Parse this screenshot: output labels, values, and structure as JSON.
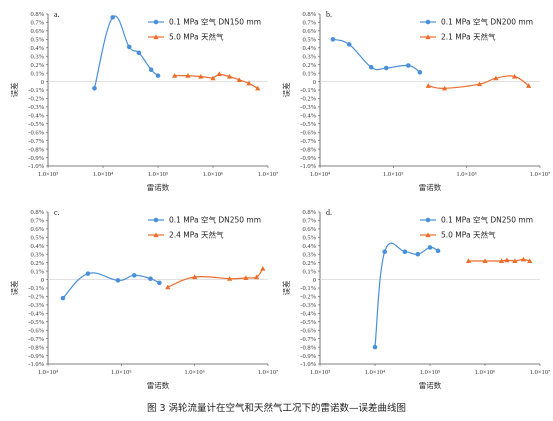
{
  "caption": "图 3   涡轮流量计在空气和天然气工况下的雷诺数—误差曲线图",
  "colors": {
    "air": "#4a90d9",
    "gas": "#ed6c2a",
    "axis": "#555555",
    "grid": "#cfcfcf"
  },
  "chart_data": [
    {
      "type": "line",
      "panel": "a.",
      "xlabel": "雷诺数",
      "ylabel": "误差",
      "x_scale": "log",
      "xlim": [
        1000,
        10000000
      ],
      "ylim": [
        -1.0,
        0.8
      ],
      "x_ticks": [
        "1.0×10³",
        "1.0×10⁴",
        "1.0×10⁵",
        "1.0×10⁶",
        "1.0×10⁷"
      ],
      "y_ticks": [
        "0.8%",
        "0.7%",
        "0.6%",
        "0.5%",
        "0.4%",
        "0.3%",
        "0.2%",
        "0.1%",
        "0",
        "-0.1%",
        "-0.2%",
        "-0.3%",
        "-0.4%",
        "-0.5%",
        "-0.6%",
        "-0.7%",
        "-0.8%",
        "-0.9%",
        "-1.0%"
      ],
      "series": [
        {
          "name": "0.1 MPa 空气   DN150 mm",
          "color": "#4a90d9",
          "marker": "circle",
          "smooth": true,
          "x": [
            7000,
            15000,
            30000,
            45000,
            75000,
            100000
          ],
          "y": [
            -0.08,
            0.76,
            0.41,
            0.34,
            0.14,
            0.07
          ]
        },
        {
          "name": "5.0 MPa 天然气",
          "color": "#ed6c2a",
          "marker": "triangle",
          "smooth": false,
          "x": [
            200000,
            350000,
            600000,
            1000000,
            1300000,
            2000000,
            3000000,
            4500000,
            6500000
          ],
          "y": [
            0.07,
            0.07,
            0.06,
            0.04,
            0.09,
            0.06,
            0.02,
            -0.02,
            -0.08
          ]
        }
      ]
    },
    {
      "type": "line",
      "panel": "b.",
      "xlabel": "雷诺数",
      "ylabel": "误差",
      "x_scale": "log",
      "xlim": [
        10000,
        10000000
      ],
      "ylim": [
        -1.0,
        0.8
      ],
      "x_ticks": [
        "1.0×10⁴",
        "1.0×10⁵",
        "1.0×10⁶",
        "1.0×10⁷"
      ],
      "y_ticks": [
        "0.8%",
        "0.7%",
        "0.6%",
        "0.5%",
        "0.4%",
        "0.3%",
        "0.2%",
        "0.1%",
        "0",
        "-0.1%",
        "-0.2%",
        "-0.3%",
        "-0.4%",
        "-0.5%",
        "-0.6%",
        "-0.7%",
        "-0.8%",
        "-0.9%",
        "-1.0%"
      ],
      "series": [
        {
          "name": "0.1 MPa 空气   DN200 mm",
          "color": "#4a90d9",
          "marker": "circle",
          "smooth": true,
          "x": [
            15000,
            25000,
            50000,
            80000,
            160000,
            230000
          ],
          "y": [
            0.5,
            0.44,
            0.17,
            0.16,
            0.19,
            0.11
          ]
        },
        {
          "name": "2.1 MPa 天然气",
          "color": "#ed6c2a",
          "marker": "triangle",
          "smooth": true,
          "x": [
            300000,
            500000,
            1500000,
            2500000,
            4500000,
            7000000
          ],
          "y": [
            -0.05,
            -0.08,
            -0.03,
            0.04,
            0.06,
            -0.05
          ]
        }
      ]
    },
    {
      "type": "line",
      "panel": "c.",
      "xlabel": "雷诺数",
      "ylabel": "误差",
      "x_scale": "log",
      "xlim": [
        10000,
        10000000
      ],
      "ylim": [
        -1.0,
        0.8
      ],
      "x_ticks": [
        "1.0×10⁴",
        "1.0×10⁵",
        "1.0×10⁶",
        "1.0×10⁷"
      ],
      "y_ticks": [
        "0.8%",
        "0.7%",
        "0.6%",
        "0.5%",
        "0.4%",
        "0.3%",
        "0.2%",
        "0.1%",
        "0",
        "-0.1%",
        "-0.2%",
        "-0.3%",
        "-0.4%",
        "-0.5%",
        "-0.6%",
        "-0.7%",
        "-0.8%",
        "-0.9%",
        "-1.0%"
      ],
      "series": [
        {
          "name": "0.1 MPa 空气   DN250 mm",
          "color": "#4a90d9",
          "marker": "circle",
          "smooth": true,
          "x": [
            16000,
            35000,
            90000,
            150000,
            250000,
            330000
          ],
          "y": [
            -0.22,
            0.07,
            -0.01,
            0.05,
            0.01,
            -0.04
          ]
        },
        {
          "name": "2.4 MPa 天然气",
          "color": "#ed6c2a",
          "marker": "triangle",
          "smooth": true,
          "x": [
            430000,
            1000000,
            3000000,
            5000000,
            7000000,
            8500000
          ],
          "y": [
            -0.09,
            0.03,
            0.01,
            0.02,
            0.03,
            0.13
          ]
        }
      ]
    },
    {
      "type": "line",
      "panel": "d.",
      "xlabel": "雷诺数",
      "ylabel": "误差",
      "x_scale": "log",
      "xlim": [
        1000,
        10000000
      ],
      "ylim": [
        -1.0,
        0.8
      ],
      "x_ticks": [
        "1.0×10³",
        "1.0×10⁴",
        "1.0×10⁵",
        "1.0×10⁶",
        "1.0×10⁷"
      ],
      "y_ticks": [
        "0.8%",
        "0.7%",
        "0.6%",
        "0.5%",
        "0.4%",
        "0.3%",
        "0.2%",
        "0.1%",
        "0",
        "-0.1%",
        "-0.2%",
        "-0.3%",
        "-0.4%",
        "-0.5%",
        "-0.6%",
        "-0.7%",
        "-0.8%",
        "-0.9%",
        "-1.0%"
      ],
      "series": [
        {
          "name": "0.1 MPa 空气   DN250 mm",
          "color": "#4a90d9",
          "marker": "circle",
          "smooth": true,
          "x": [
            10000,
            15000,
            35000,
            60000,
            100000,
            140000
          ],
          "y": [
            -0.8,
            0.33,
            0.33,
            0.3,
            0.38,
            0.34
          ]
        },
        {
          "name": "5.0 MPa 天然气",
          "color": "#ed6c2a",
          "marker": "triangle",
          "smooth": false,
          "x": [
            500000,
            1000000,
            2000000,
            2500000,
            3500000,
            5000000,
            6500000
          ],
          "y": [
            0.22,
            0.22,
            0.22,
            0.23,
            0.22,
            0.24,
            0.22
          ]
        }
      ]
    }
  ]
}
